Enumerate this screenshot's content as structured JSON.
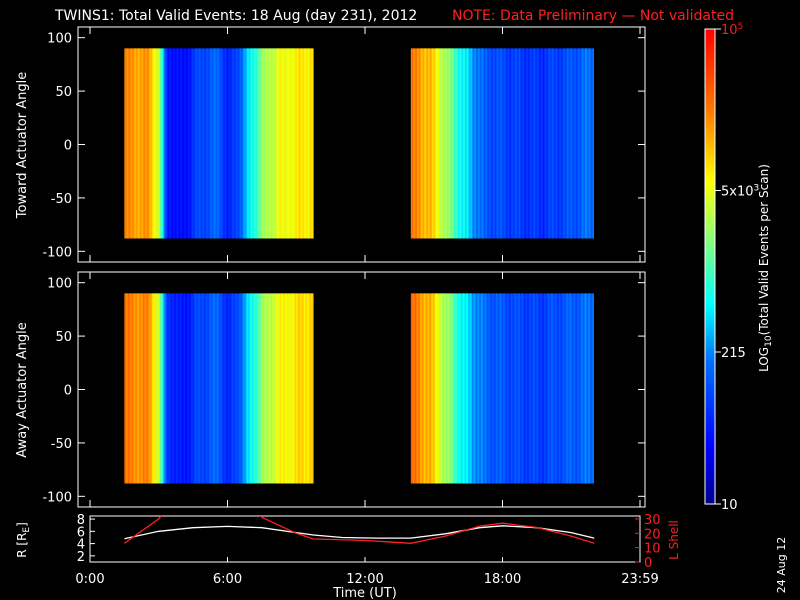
{
  "header": {
    "title": "TWINS1: Total Valid Events: 18 Aug (day 231), 2012",
    "note": "NOTE: Data Preliminary — Not validated",
    "title_color": "#ffffff",
    "note_color": "#ff1a1a"
  },
  "footer": {
    "xlabel": "Time (UT)",
    "date_stamp": "24 Aug 12"
  },
  "chart_data": [
    {
      "type": "heatmap",
      "ylabel": "Toward Actuator Angle",
      "x_ticks": [
        "0:00",
        "6:00",
        "12:00",
        "18:00",
        "23:59"
      ],
      "y_ticks": [
        100,
        50,
        0,
        -50,
        -100
      ],
      "xlim_hours": [
        0,
        24
      ],
      "ylim": [
        -110,
        110
      ],
      "data_ylim": [
        -88,
        90
      ],
      "blocks": [
        {
          "start": "1:30",
          "end": "9:45",
          "level_profile": [
            [
              0.0,
              0.8
            ],
            [
              0.13,
              0.78
            ],
            [
              0.18,
              0.62
            ],
            [
              0.22,
              0.18
            ],
            [
              0.3,
              0.12
            ],
            [
              0.38,
              0.22
            ],
            [
              0.5,
              0.28
            ],
            [
              0.55,
              0.15
            ],
            [
              0.62,
              0.3
            ],
            [
              0.72,
              0.55
            ],
            [
              0.8,
              0.65
            ],
            [
              1.0,
              0.72
            ]
          ]
        },
        {
          "start": "14:00",
          "end": "22:00",
          "level_profile": [
            [
              0.0,
              0.82
            ],
            [
              0.1,
              0.75
            ],
            [
              0.18,
              0.6
            ],
            [
              0.28,
              0.42
            ],
            [
              0.4,
              0.26
            ],
            [
              0.55,
              0.22
            ],
            [
              0.7,
              0.2
            ],
            [
              0.85,
              0.24
            ],
            [
              1.0,
              0.3
            ]
          ]
        }
      ]
    },
    {
      "type": "heatmap",
      "ylabel": "Away Actuator Angle",
      "x_ticks": [
        "0:00",
        "6:00",
        "12:00",
        "18:00",
        "23:59"
      ],
      "y_ticks": [
        100,
        50,
        0,
        -50,
        -100
      ],
      "xlim_hours": [
        0,
        24
      ],
      "ylim": [
        -110,
        110
      ],
      "data_ylim": [
        -88,
        90
      ],
      "blocks": [
        {
          "start": "1:30",
          "end": "9:45",
          "level_profile": [
            [
              0.0,
              0.82
            ],
            [
              0.13,
              0.8
            ],
            [
              0.18,
              0.62
            ],
            [
              0.22,
              0.22
            ],
            [
              0.3,
              0.14
            ],
            [
              0.38,
              0.22
            ],
            [
              0.5,
              0.28
            ],
            [
              0.55,
              0.16
            ],
            [
              0.62,
              0.3
            ],
            [
              0.72,
              0.55
            ],
            [
              0.8,
              0.66
            ],
            [
              1.0,
              0.74
            ]
          ]
        },
        {
          "start": "14:00",
          "end": "22:00",
          "level_profile": [
            [
              0.0,
              0.84
            ],
            [
              0.1,
              0.76
            ],
            [
              0.18,
              0.6
            ],
            [
              0.28,
              0.42
            ],
            [
              0.4,
              0.28
            ],
            [
              0.55,
              0.24
            ],
            [
              0.7,
              0.22
            ],
            [
              0.85,
              0.26
            ],
            [
              1.0,
              0.3
            ]
          ]
        }
      ]
    },
    {
      "type": "line",
      "ylabel_left": "R [R",
      "ylabel_left_sub": "E",
      "ylabel_left_end": "]",
      "ylabel_right": "L Shell",
      "ylim_left": [
        1,
        8.5
      ],
      "ylim_right": [
        0,
        32
      ],
      "y_ticks_left": [
        2,
        4,
        6,
        8
      ],
      "y_ticks_right": [
        0,
        10,
        20,
        30
      ],
      "series": [
        {
          "axis": "left",
          "color": "#ffffff",
          "points": [
            [
              "1:30",
              4.8
            ],
            [
              "3:00",
              6.0
            ],
            [
              "4:30",
              6.6
            ],
            [
              "6:00",
              6.8
            ],
            [
              "7:30",
              6.6
            ],
            [
              "9:00",
              5.8
            ],
            [
              "9:45",
              5.4
            ],
            [
              "11:00",
              5.0
            ],
            [
              "12:30",
              4.9
            ],
            [
              "14:00",
              4.9
            ],
            [
              "15:30",
              5.6
            ],
            [
              "17:00",
              6.6
            ],
            [
              "18:00",
              6.9
            ],
            [
              "19:30",
              6.6
            ],
            [
              "21:00",
              5.8
            ],
            [
              "22:00",
              4.9
            ]
          ]
        },
        {
          "axis": "right",
          "color": "#ff2020",
          "points": [
            [
              "1:30",
              13
            ],
            [
              "3:00",
              30
            ],
            [
              "3:30",
              40
            ],
            [
              "7:00",
              40
            ],
            [
              "7:30",
              31
            ],
            [
              "9:00",
              20
            ],
            [
              "9:45",
              16
            ],
            [
              "12:00",
              15
            ],
            [
              "14:00",
              13
            ],
            [
              "15:30",
              18
            ],
            [
              "17:00",
              25
            ],
            [
              "18:00",
              27
            ],
            [
              "19:30",
              24
            ],
            [
              "21:00",
              18
            ],
            [
              "22:00",
              13
            ]
          ]
        }
      ]
    }
  ],
  "colorbar": {
    "label": "LOG",
    "label_sub": "10",
    "label_end": "(Total Valid  Events per Scan)",
    "ticks": [
      {
        "base": "10",
        "exp": "5",
        "level": 1.0,
        "color": "#ff1a1a"
      },
      {
        "base": "5x10",
        "exp": "3",
        "level": 0.66,
        "color": "#ffffff"
      },
      {
        "base": "215",
        "exp": "",
        "level": 0.32,
        "color": "#ffffff"
      },
      {
        "base": "10",
        "exp": "",
        "level": 0.0,
        "color": "#ffffff"
      }
    ]
  }
}
